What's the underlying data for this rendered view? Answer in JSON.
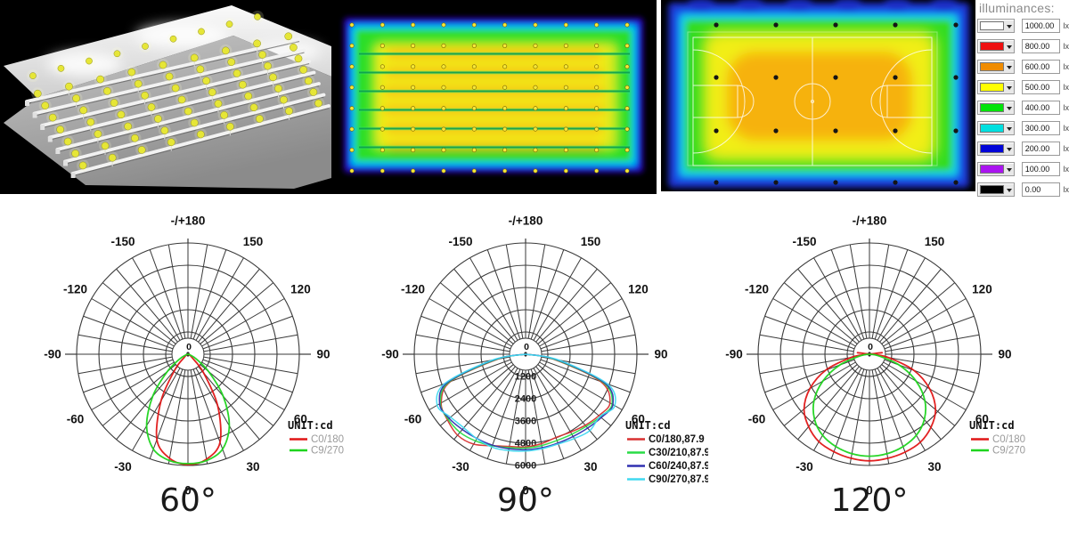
{
  "top_row": {
    "panel_3d": {
      "bg": "#000000",
      "wall_color_light": "#f5f5f5",
      "wall_color_dark": "#d2d2d2",
      "floor_color_near": "#8e8e8e",
      "floor_color_far": "#c6c6c6",
      "beam_color": "#f2f2f2",
      "lamp_color": "#e6e636",
      "lamp_rows": 8,
      "lamps_per_row": 9
    },
    "heatmap_plan": {
      "colors": {
        "bg": "#000000",
        "rim": "#2a00b0",
        "blue": "#0030ee",
        "cyan": "#00c8e8",
        "green": "#2ade2a",
        "yellow_green": "#c8e820",
        "yellow": "#f2ee18",
        "orange": "#f5b218",
        "truss": "#0b9e50",
        "dot": "#f5e838"
      },
      "dot_rows": 8,
      "dot_cols": 10,
      "truss_count": 6
    },
    "court": {
      "colors": {
        "bg": "#000000",
        "rim": "#1a2ec8",
        "blue": "#1560ee",
        "cyan": "#18cce0",
        "green": "#30dc20",
        "yellow_green": "#d8ec18",
        "yellow": "#f2ee18",
        "orange": "#f5ae10",
        "line": "#ffffff",
        "dot": "#151515"
      },
      "dot_rows": 4,
      "dot_cols": 5
    },
    "illuminance_legend": {
      "title": "illuminances:",
      "unit": "lx",
      "entries": [
        {
          "color": "#ffffff",
          "value": "1000.00"
        },
        {
          "color": "#ee1010",
          "value": "800.00"
        },
        {
          "color": "#f08c00",
          "value": "600.00"
        },
        {
          "color": "#ffff00",
          "value": "500.00"
        },
        {
          "color": "#00e408",
          "value": "400.00"
        },
        {
          "color": "#00e0e0",
          "value": "300.00"
        },
        {
          "color": "#0004d8",
          "value": "200.00"
        },
        {
          "color": "#aa14f0",
          "value": "100.00"
        },
        {
          "color": "#000000",
          "value": "0.00"
        }
      ]
    }
  },
  "polar_common": {
    "max_cd": 6000,
    "ring_step_cd": 1200,
    "rings": 5,
    "spoke_step_deg": 10,
    "center_label": "0",
    "angle_labels": [
      {
        "deg": 180,
        "label": "-/+180"
      },
      {
        "deg": 150,
        "label": "150"
      },
      {
        "deg": 120,
        "label": "120"
      },
      {
        "deg": 90,
        "label": "90"
      },
      {
        "deg": 60,
        "label": "60"
      },
      {
        "deg": 30,
        "label": "30"
      },
      {
        "deg": 0,
        "label": "0"
      },
      {
        "deg": -30,
        "label": "-30"
      },
      {
        "deg": -60,
        "label": "-60"
      },
      {
        "deg": -90,
        "label": "-90"
      },
      {
        "deg": -120,
        "label": "-120"
      },
      {
        "deg": -150,
        "label": "-150"
      }
    ]
  },
  "chart_data": [
    {
      "type": "polar",
      "title": "60°",
      "unit_label": "UNIT:cd",
      "legend_text_color": "#9a9a9a",
      "radial_tick_labels": [],
      "series": [
        {
          "name": "C0/180",
          "color": "#e01616",
          "angles_deg": [
            -90,
            -80,
            -70,
            -60,
            -50,
            -40,
            -30,
            -20,
            -10,
            0,
            10,
            20,
            30,
            40,
            50,
            60,
            70,
            80,
            90
          ],
          "values_cd": [
            0,
            15,
            40,
            95,
            260,
            1100,
            2900,
            4900,
            5700,
            5950,
            5750,
            5050,
            3200,
            1300,
            300,
            100,
            40,
            15,
            0
          ]
        },
        {
          "name": "C9/270",
          "color": "#1ed41e",
          "angles_deg": [
            -90,
            -80,
            -70,
            -60,
            -50,
            -40,
            -30,
            -20,
            -10,
            0,
            10,
            20,
            30,
            40,
            50,
            60,
            70,
            80,
            90
          ],
          "values_cd": [
            0,
            30,
            130,
            520,
            1450,
            2950,
            4450,
            5450,
            5820,
            5900,
            5820,
            5450,
            4450,
            2950,
            1450,
            520,
            130,
            30,
            0
          ]
        }
      ]
    },
    {
      "type": "polar",
      "title": "90°",
      "unit_label": "UNIT:cd",
      "legend_text_color": "#111111",
      "radial_tick_labels": [
        "1200",
        "2400",
        "3600",
        "4800",
        "6000"
      ],
      "series": [
        {
          "name": "C0/180,87.9",
          "color": "#d83030",
          "angles_deg": [
            -88,
            -80,
            -70,
            -60,
            -50,
            -40,
            -30,
            -20,
            -10,
            0,
            10,
            20,
            30,
            40,
            50,
            60,
            70,
            80,
            88
          ],
          "values_cd": [
            0,
            1500,
            4300,
            5250,
            5500,
            5700,
            5600,
            5250,
            5050,
            5000,
            4900,
            4780,
            4850,
            5000,
            5150,
            5250,
            4300,
            1500,
            0
          ]
        },
        {
          "name": "C30/210,87.9",
          "color": "#28dc46",
          "angles_deg": [
            -88,
            -80,
            -70,
            -60,
            -50,
            -40,
            -30,
            -20,
            -10,
            0,
            10,
            20,
            30,
            40,
            50,
            60,
            70,
            80,
            88
          ],
          "values_cd": [
            0,
            1600,
            4400,
            5300,
            5450,
            5500,
            5400,
            5250,
            5120,
            5060,
            5000,
            4950,
            4980,
            5080,
            5250,
            5380,
            4450,
            1600,
            0
          ]
        },
        {
          "name": "C60/240,87.9",
          "color": "#3030b0",
          "angles_deg": [
            -88,
            -80,
            -70,
            -60,
            -50,
            -40,
            -30,
            -20,
            -10,
            0,
            10,
            20,
            30,
            40,
            50,
            60,
            70,
            80,
            88
          ],
          "values_cd": [
            0,
            1700,
            4500,
            5350,
            5380,
            5300,
            5250,
            5220,
            5180,
            5150,
            5120,
            5100,
            5120,
            5200,
            5320,
            5430,
            4550,
            1700,
            0
          ]
        },
        {
          "name": "C90/270,87.9",
          "color": "#40d8f0",
          "angles_deg": [
            -88,
            -80,
            -70,
            -60,
            -50,
            -40,
            -30,
            -20,
            -10,
            0,
            10,
            20,
            30,
            40,
            50,
            60,
            70,
            80,
            88
          ],
          "values_cd": [
            0,
            1800,
            4650,
            5500,
            5280,
            5180,
            5260,
            5330,
            5280,
            5220,
            5170,
            5150,
            5250,
            5380,
            5230,
            5550,
            4700,
            1800,
            0
          ]
        }
      ]
    },
    {
      "type": "polar",
      "title": "120°",
      "unit_label": "UNIT:cd",
      "legend_text_color": "#9a9a9a",
      "radial_tick_labels": [],
      "series": [
        {
          "name": "C0/180",
          "color": "#e01616",
          "angles_deg": [
            -105,
            -97,
            -90,
            -80,
            -70,
            -60,
            -50,
            -40,
            -30,
            -20,
            -10,
            0,
            10,
            20,
            30,
            40,
            50,
            60,
            70,
            80,
            90,
            97,
            105
          ],
          "values_cd": [
            0,
            650,
            200,
            1000,
            2500,
            3700,
            4600,
            5100,
            5450,
            5600,
            5700,
            5750,
            5700,
            5620,
            5480,
            5150,
            4650,
            3750,
            2550,
            1050,
            250,
            680,
            0
          ]
        },
        {
          "name": "C9/270",
          "color": "#1ed41e",
          "angles_deg": [
            -90,
            -80,
            -70,
            -60,
            -50,
            -40,
            -30,
            -20,
            -10,
            0,
            10,
            20,
            30,
            40,
            50,
            60,
            70,
            80,
            90
          ],
          "values_cd": [
            0,
            500,
            1700,
            2900,
            3900,
            4600,
            5050,
            5300,
            5450,
            5500,
            5450,
            5300,
            5050,
            4600,
            3900,
            2900,
            1700,
            500,
            0
          ]
        }
      ]
    }
  ]
}
